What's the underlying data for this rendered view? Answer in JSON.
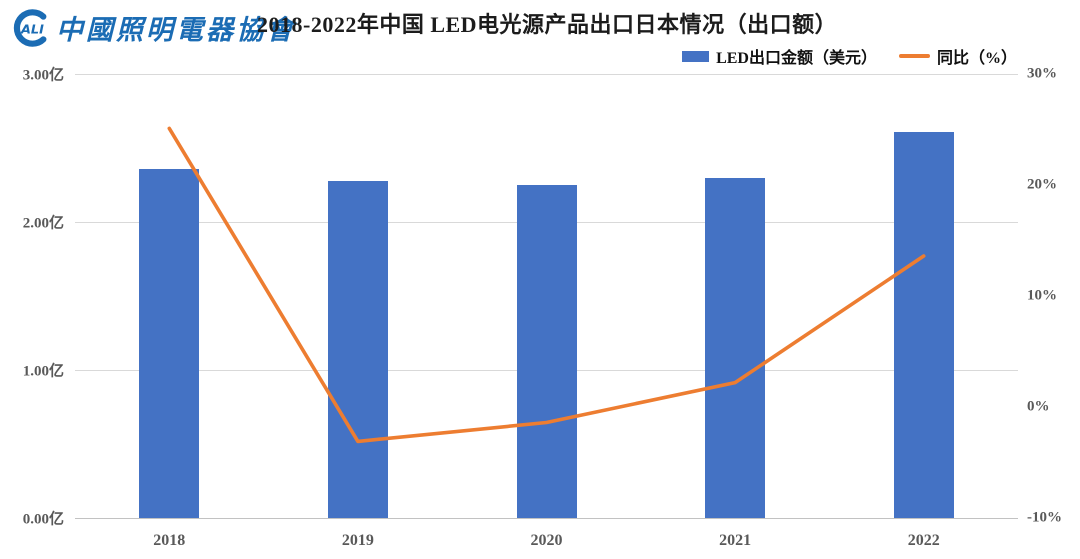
{
  "header": {
    "logo": {
      "mark_text": "ALI",
      "org_name": "中國照明電器協會",
      "color": "#1B6CB4"
    },
    "title": "2018-2022年中国 LED电光源产品出口日本情况（出口额）"
  },
  "legend": [
    {
      "label": "LED出口金额（美元）",
      "marker": "bar-swatch",
      "color": "#4472C4"
    },
    {
      "label": "同比（%）",
      "marker": "line-swatch",
      "color": "#ED7D31"
    }
  ],
  "chart_data": {
    "type": "bar",
    "subtype": "combo bar + line with dual y-axes",
    "title": "2018-2022年中国 LED电光源产品出口日本情况（出口额）",
    "categories": [
      "2018",
      "2019",
      "2020",
      "2021",
      "2022"
    ],
    "series": [
      {
        "name": "LED出口金额（美元）",
        "type": "bar",
        "axis": "left",
        "unit": "亿美元",
        "color": "#4472C4",
        "values": [
          2.36,
          2.28,
          2.25,
          2.3,
          2.61
        ]
      },
      {
        "name": "同比（%）",
        "type": "line",
        "axis": "right",
        "unit": "%",
        "color": "#ED7D31",
        "values": [
          25.1,
          -3.1,
          -1.4,
          2.2,
          13.6
        ]
      }
    ],
    "left_axis": {
      "min": 0,
      "max": 3,
      "tick_values": [
        3,
        2,
        1,
        0
      ],
      "ticks": [
        "3.00亿",
        "2.00亿",
        "1.00亿",
        "0.00亿"
      ]
    },
    "right_axis": {
      "min": -10,
      "max": 30,
      "tick_values": [
        30,
        20,
        10,
        0,
        -10
      ],
      "ticks": [
        "30%",
        "20%",
        "10%",
        "0%",
        "-10%"
      ]
    },
    "grid": "horizontal major gridlines of primary (left) axis only",
    "legend_position": "top-right",
    "xlabel": "",
    "ylabel": ""
  }
}
